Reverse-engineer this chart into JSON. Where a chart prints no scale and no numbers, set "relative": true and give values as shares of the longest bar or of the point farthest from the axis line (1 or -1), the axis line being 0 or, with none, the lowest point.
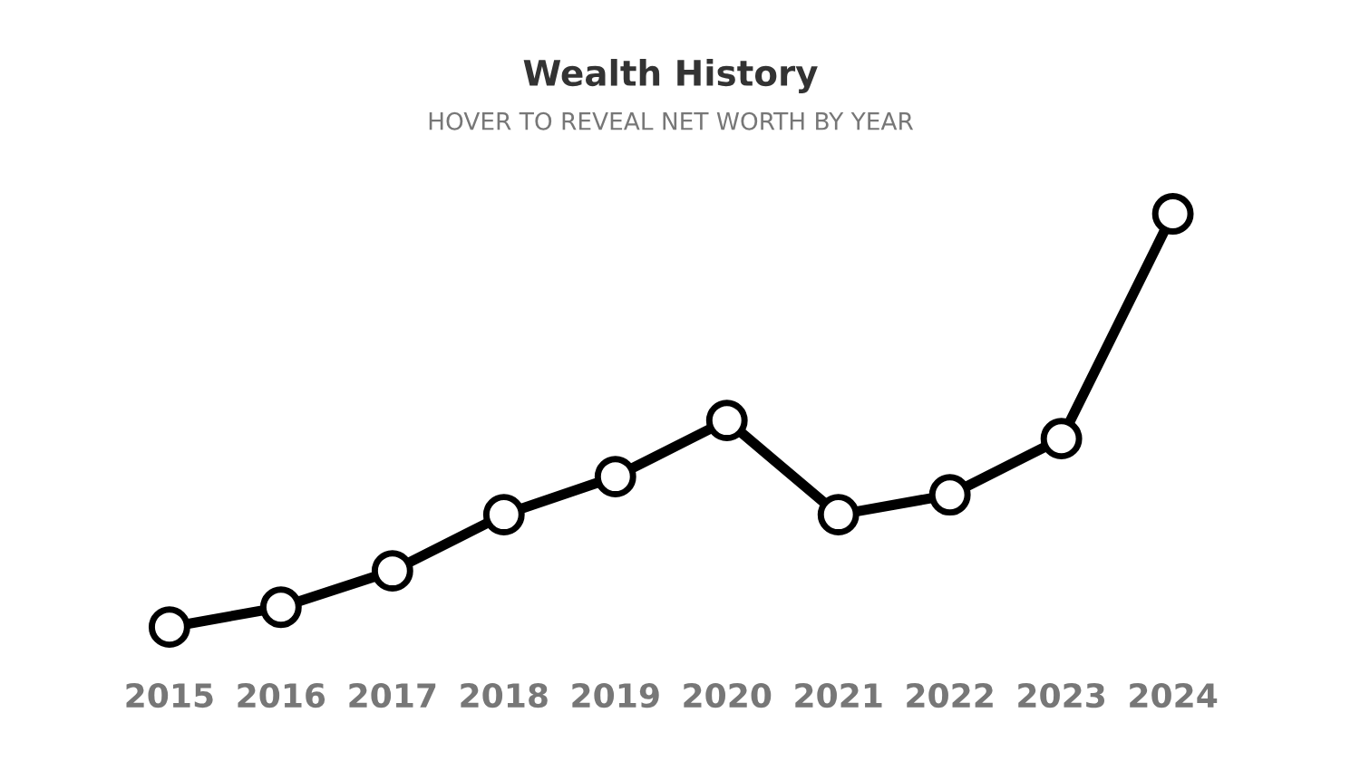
{
  "chart_data": {
    "type": "line",
    "title": "Wealth History",
    "subtitle": "HOVER TO REVEAL NET WORTH BY YEAR",
    "categories": [
      "2015",
      "2016",
      "2017",
      "2018",
      "2019",
      "2020",
      "2021",
      "2022",
      "2023",
      "2024"
    ],
    "series": [
      {
        "color": "#000000",
        "values": [
          0,
          0.048,
          0.136,
          0.272,
          0.364,
          0.5,
          0.272,
          0.32,
          0.456,
          1
        ]
      }
    ],
    "relative": true,
    "marker": "circle",
    "line_style": "solid",
    "grid": false
  }
}
